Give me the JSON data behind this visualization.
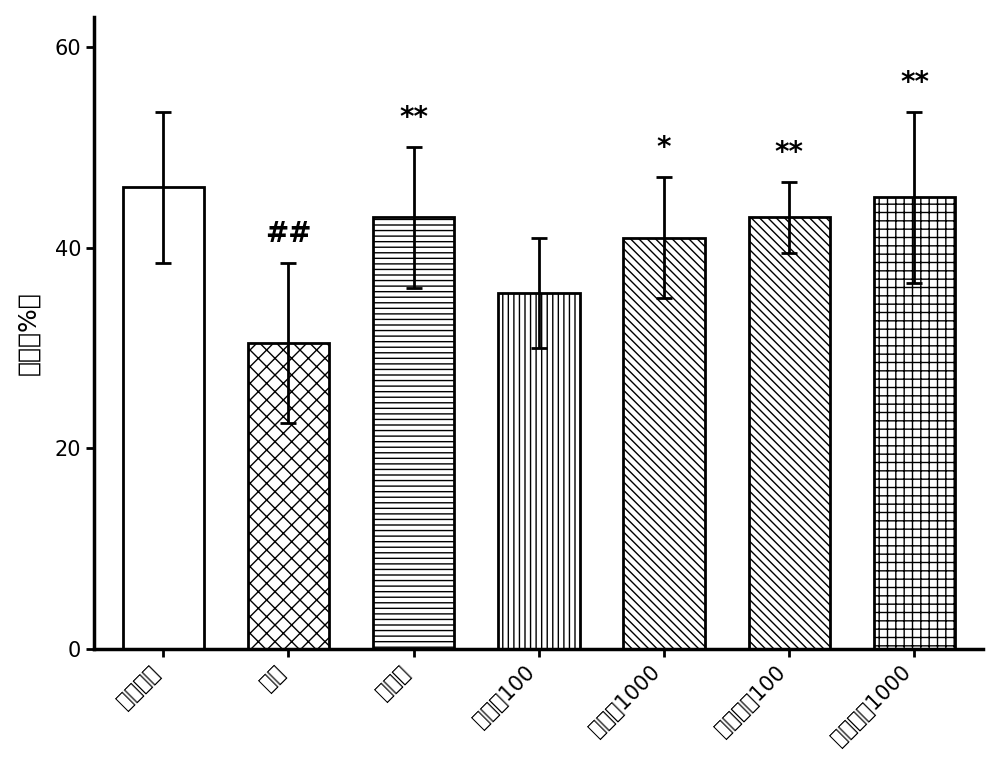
{
  "categories": [
    "生理盐水",
    "模型",
    "他克林",
    "盐酸盐100",
    "盐酸盐1000",
    "酒石酸盐100",
    "酒石酸盐1000"
  ],
  "values": [
    46.0,
    30.5,
    43.0,
    35.5,
    41.0,
    43.0,
    45.0
  ],
  "errors": [
    7.5,
    8.0,
    7.0,
    5.5,
    6.0,
    3.5,
    8.5
  ],
  "annotations": [
    "",
    "##",
    "**",
    "",
    "*",
    "**",
    "**"
  ],
  "ylabel": "距离（%）",
  "ylim": [
    0,
    63
  ],
  "yticks": [
    0,
    20,
    40,
    60
  ],
  "bar_width": 0.65,
  "annotation_fontsize": 20,
  "axis_fontsize": 18,
  "tick_fontsize": 15
}
